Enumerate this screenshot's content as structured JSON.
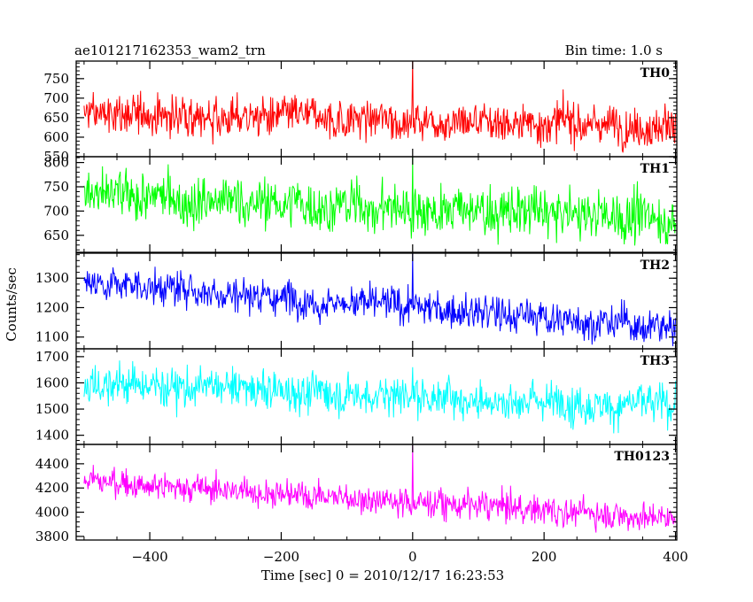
{
  "figure": {
    "title_left": "ae101217162353_wam2_trn",
    "title_right": "Bin time: 1.0 s",
    "xlabel": "Time [sec] 0 = 2010/12/17 16:23:53",
    "ylabel": "Counts/sec"
  },
  "chart_data": {
    "type": "line",
    "x_tick_labels": [
      "−400",
      "−200",
      "0",
      "200",
      "400"
    ],
    "x_ticks": [
      -400,
      -200,
      0,
      200,
      400
    ],
    "xlim": [
      -512,
      402
    ],
    "x_range_data": [
      -500,
      400
    ],
    "bin_time_s": 1.0,
    "panels": [
      {
        "name": "TH0",
        "color": "#ff0000",
        "ylim": [
          550,
          795
        ],
        "y_ticks": [
          550,
          600,
          650,
          700,
          750
        ],
        "y_tick_labels": [
          "550",
          "600",
          "650",
          "700",
          "750"
        ],
        "trend_start": 660,
        "trend_end": 630,
        "noise": 32,
        "spike_value": 800
      },
      {
        "name": "TH1",
        "color": "#00ff00",
        "ylim": [
          615,
          812
        ],
        "y_ticks": [
          650,
          700,
          750,
          800
        ],
        "y_tick_labels": [
          "650",
          "700",
          "750",
          "800"
        ],
        "trend_start": 730,
        "trend_end": 685,
        "noise": 32,
        "spike_value": 812
      },
      {
        "name": "TH2",
        "color": "#0000ff",
        "ylim": [
          1060,
          1385
        ],
        "y_ticks": [
          1100,
          1200,
          1300
        ],
        "y_tick_labels": [
          "1100",
          "1200",
          "1300"
        ],
        "trend_start": 1290,
        "trend_end": 1130,
        "noise": 38,
        "spike_value": 1385
      },
      {
        "name": "TH3",
        "color": "#00ffff",
        "ylim": [
          1365,
          1730
        ],
        "y_ticks": [
          1400,
          1500,
          1600,
          1700
        ],
        "y_tick_labels": [
          "1400",
          "1500",
          "1600",
          "1700"
        ],
        "trend_start": 1600,
        "trend_end": 1510,
        "noise": 48,
        "spike_value": 1660
      },
      {
        "name": "TH0123",
        "color": "#ff00ff",
        "ylim": [
          3770,
          4560
        ],
        "y_ticks": [
          3800,
          4000,
          4200,
          4400
        ],
        "y_tick_labels": [
          "3800",
          "4000",
          "4200",
          "4400"
        ],
        "trend_start": 4260,
        "trend_end": 3950,
        "noise": 75,
        "spike_value": 4550
      }
    ]
  }
}
